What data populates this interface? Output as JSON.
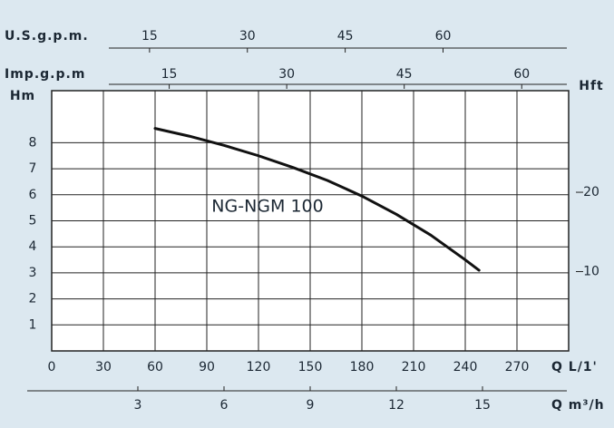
{
  "chart_data": {
    "type": "line",
    "x_label": "Q L/1'",
    "xlim": [
      0,
      300
    ],
    "xticks": [
      0,
      30,
      60,
      90,
      120,
      150,
      180,
      210,
      240,
      270
    ],
    "y_label": "Hm",
    "ylim": [
      0,
      10
    ],
    "yticks": [
      1,
      2,
      3,
      4,
      5,
      6,
      7,
      8
    ],
    "y2_label": "Hft",
    "y2lim": [
      0,
      32.81
    ],
    "y2ticks": [
      10,
      20
    ],
    "grid": true,
    "x": [
      60,
      80,
      100,
      120,
      140,
      160,
      180,
      200,
      220,
      240,
      248
    ],
    "series": [
      {
        "name": "NG-NGM 100",
        "color": "#111111",
        "values": [
          8.55,
          8.25,
          7.9,
          7.5,
          7.05,
          6.55,
          5.95,
          5.25,
          4.45,
          3.5,
          3.1
        ]
      }
    ],
    "extra_x_axes": [
      {
        "label": "U.S.g.p.m.",
        "xlim": [
          0,
          79.26
        ],
        "xticks": [
          15,
          30,
          45,
          60
        ],
        "position": "top"
      },
      {
        "label": "Imp.g.p.m",
        "xlim": [
          0,
          65.99
        ],
        "xticks": [
          15,
          30,
          45,
          60
        ],
        "position": "top"
      },
      {
        "label": "Q m³/h",
        "xlim": [
          0,
          18
        ],
        "xticks": [
          3,
          6,
          9,
          12,
          15
        ],
        "position": "bottom"
      }
    ]
  }
}
